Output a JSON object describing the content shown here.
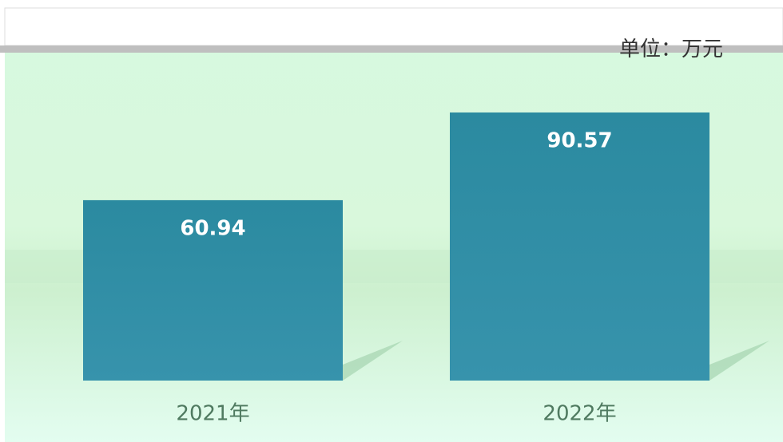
{
  "chart_data": {
    "type": "bar",
    "subtitle": "单位：万元",
    "categories": [
      "2021年",
      "2022年"
    ],
    "values": [
      60.94,
      90.57
    ],
    "color": "#2f8fa3"
  }
}
